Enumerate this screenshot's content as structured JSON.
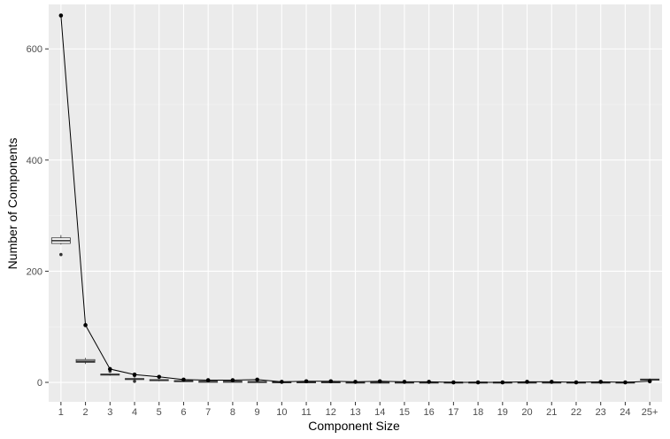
{
  "chart_data": {
    "type": "line",
    "title": "",
    "xlabel": "Component Size",
    "ylabel": "Number of Components",
    "categories": [
      "1",
      "2",
      "3",
      "4",
      "5",
      "6",
      "7",
      "8",
      "9",
      "10",
      "11",
      "12",
      "13",
      "14",
      "15",
      "16",
      "17",
      "18",
      "19",
      "20",
      "21",
      "22",
      "23",
      "24",
      "25+"
    ],
    "ylim": [
      -35,
      680
    ],
    "yticks": [
      0,
      200,
      400,
      600
    ],
    "grid": true,
    "legend": "none",
    "series": [
      {
        "values": [
          660,
          103,
          24,
          14,
          10,
          5,
          4,
          4,
          5,
          1,
          2,
          2,
          1,
          2,
          1,
          1,
          0,
          0,
          0,
          1,
          1,
          0,
          1,
          0,
          2
        ]
      }
    ],
    "boxplots": [
      {
        "category": "1",
        "min": 248,
        "q1": 250,
        "median": 255,
        "q3": 260,
        "max": 265,
        "outliers": [
          230
        ]
      },
      {
        "category": "2",
        "min": 33,
        "q1": 36,
        "median": 38,
        "q3": 41,
        "max": 44,
        "outliers": []
      },
      {
        "category": "3",
        "min": 12,
        "q1": 13,
        "median": 14,
        "q3": 15,
        "max": 16,
        "outliers": [
          20
        ]
      },
      {
        "category": "4",
        "min": 4,
        "q1": 5,
        "median": 6,
        "q3": 7,
        "max": 9,
        "outliers": [
          2,
          12
        ]
      },
      {
        "category": "5",
        "min": 2,
        "q1": 3,
        "median": 4,
        "q3": 5,
        "max": 6,
        "outliers": []
      },
      {
        "category": "6",
        "min": 1,
        "q1": 2,
        "median": 2.5,
        "q3": 3,
        "max": 4,
        "outliers": []
      },
      {
        "category": "7",
        "min": 0,
        "q1": 1,
        "median": 1.5,
        "q3": 2,
        "max": 3,
        "outliers": []
      },
      {
        "category": "8",
        "min": 0,
        "q1": 1,
        "median": 1.5,
        "q3": 2,
        "max": 3,
        "outliers": []
      },
      {
        "category": "9",
        "min": 0,
        "q1": 0.5,
        "median": 1,
        "q3": 1.5,
        "max": 2,
        "outliers": []
      },
      {
        "category": "10",
        "min": 0,
        "q1": 0,
        "median": 0.5,
        "q3": 1,
        "max": 1,
        "outliers": []
      },
      {
        "category": "11",
        "min": 0,
        "q1": 0,
        "median": 0.5,
        "q3": 1,
        "max": 1,
        "outliers": []
      },
      {
        "category": "12",
        "min": 0,
        "q1": 0,
        "median": 0.5,
        "q3": 1,
        "max": 1,
        "outliers": []
      },
      {
        "category": "13",
        "min": 0,
        "q1": 0,
        "median": 0,
        "q3": 0.5,
        "max": 1,
        "outliers": []
      },
      {
        "category": "14",
        "min": 0,
        "q1": 0,
        "median": 0,
        "q3": 0.5,
        "max": 1,
        "outliers": []
      },
      {
        "category": "15",
        "min": 0,
        "q1": 0,
        "median": 0,
        "q3": 0.5,
        "max": 1,
        "outliers": []
      },
      {
        "category": "16",
        "min": 0,
        "q1": 0,
        "median": 0,
        "q3": 0.5,
        "max": 1,
        "outliers": []
      },
      {
        "category": "17",
        "min": 0,
        "q1": 0,
        "median": 0,
        "q3": 0.5,
        "max": 1,
        "outliers": []
      },
      {
        "category": "18",
        "min": 0,
        "q1": 0,
        "median": 0,
        "q3": 0.5,
        "max": 1,
        "outliers": []
      },
      {
        "category": "19",
        "min": 0,
        "q1": 0,
        "median": 0,
        "q3": 0.5,
        "max": 1,
        "outliers": []
      },
      {
        "category": "20",
        "min": 0,
        "q1": 0,
        "median": 0,
        "q3": 0.5,
        "max": 1,
        "outliers": []
      },
      {
        "category": "21",
        "min": 0,
        "q1": 0,
        "median": 0,
        "q3": 0.5,
        "max": 1,
        "outliers": []
      },
      {
        "category": "22",
        "min": 0,
        "q1": 0,
        "median": 0,
        "q3": 0.5,
        "max": 1,
        "outliers": []
      },
      {
        "category": "23",
        "min": 0,
        "q1": 0,
        "median": 0,
        "q3": 0.5,
        "max": 1,
        "outliers": []
      },
      {
        "category": "24",
        "min": 0,
        "q1": 0,
        "median": 0,
        "q3": 0.5,
        "max": 1,
        "outliers": []
      },
      {
        "category": "25+",
        "min": 3,
        "q1": 4,
        "median": 5,
        "q3": 6,
        "max": 7,
        "outliers": []
      }
    ],
    "colors": {
      "panel": "#ebebeb",
      "grid_major": "#ffffff",
      "grid_minor": "#f5f5f5",
      "line": "#000000",
      "point": "#000000",
      "box_fill": "#ffffff",
      "box_stroke": "#333333",
      "tick_text": "#4d4d4d",
      "title_text": "#000000"
    }
  }
}
